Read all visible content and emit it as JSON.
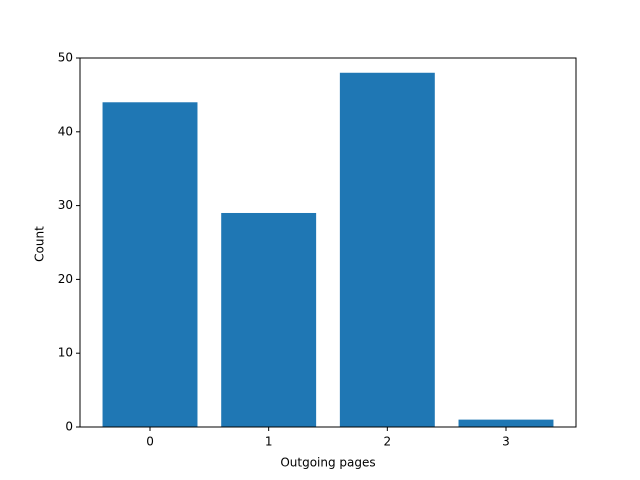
{
  "chart_data": {
    "type": "bar",
    "x": [
      0,
      1,
      2,
      3
    ],
    "values": [
      44,
      29,
      48,
      1
    ],
    "color": "#1f77b4",
    "xlabel": "Outgoing pages",
    "ylabel": "Count",
    "xlim": [
      -0.59,
      3.59
    ],
    "xticks": [
      0,
      1,
      2,
      3
    ],
    "ylim": [
      0,
      50
    ],
    "yticks": [
      0,
      10,
      20,
      30,
      40,
      50
    ],
    "grid": false
  }
}
